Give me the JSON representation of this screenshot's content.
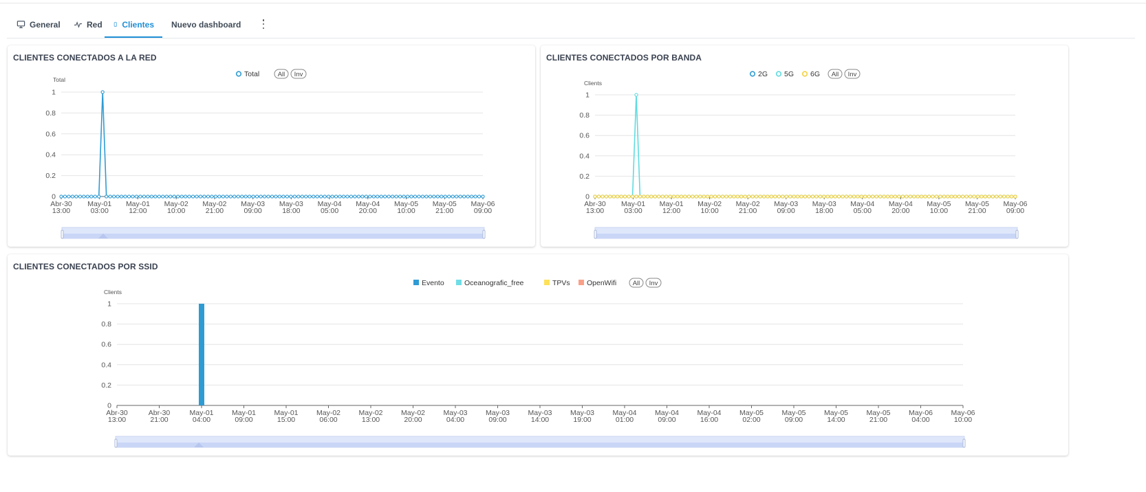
{
  "tabs": [
    {
      "label": "General",
      "icon": "monitor-icon",
      "active": false
    },
    {
      "label": "Red",
      "icon": "activity-icon",
      "active": false
    },
    {
      "label": "Clientes",
      "icon": "mobile-icon",
      "active": true
    },
    {
      "label": "Nuevo dashboard",
      "icon": "",
      "active": false
    }
  ],
  "colors": {
    "accent": "#1f8fd6",
    "total": "#2f9bd3",
    "band_2g": "#2f9bd3",
    "band_5g": "#5fdbe0",
    "band_6g": "#f4d13f",
    "evento": "#2f9bd3",
    "oceanografic": "#6fdde6",
    "tpvs": "#fde15a",
    "openwifi": "#f9a088"
  },
  "charts": {
    "red": {
      "title": "CLIENTES CONECTADOS A LA RED"
    },
    "banda": {
      "title": "CLIENTES CONECTADOS POR BANDA"
    },
    "ssid": {
      "title": "CLIENTES CONECTADOS POR SSID"
    }
  },
  "chart_data": [
    {
      "type": "line",
      "title": "CLIENTES CONECTADOS A LA RED",
      "ylabel": "Total",
      "ylim": [
        0,
        1
      ],
      "yticks": [
        "0",
        "0.2",
        "0.4",
        "0.6",
        "0.8",
        "1"
      ],
      "x_tick_labels": [
        [
          "Abr-30",
          "13:00"
        ],
        [
          "May-01",
          "03:00"
        ],
        [
          "May-01",
          "12:00"
        ],
        [
          "May-02",
          "10:00"
        ],
        [
          "May-02",
          "21:00"
        ],
        [
          "May-03",
          "09:00"
        ],
        [
          "May-03",
          "18:00"
        ],
        [
          "May-04",
          "05:00"
        ],
        [
          "May-04",
          "20:00"
        ],
        [
          "May-05",
          "10:00"
        ],
        [
          "May-05",
          "21:00"
        ],
        [
          "May-06",
          "09:00"
        ]
      ],
      "legend": [
        "Total"
      ],
      "legend_buttons": [
        "All",
        "Inv"
      ],
      "legend_placement": "top-center",
      "grid": true,
      "point_count": 113,
      "series": [
        {
          "name": "Total",
          "peak_index": 11,
          "peak_value": 1,
          "baseline_value": 0
        }
      ]
    },
    {
      "type": "line",
      "title": "CLIENTES CONECTADOS POR BANDA",
      "ylabel": "Clients",
      "ylim": [
        0,
        1
      ],
      "yticks": [
        "0",
        "0.2",
        "0.4",
        "0.6",
        "0.8",
        "1"
      ],
      "x_tick_labels": [
        [
          "Abr-30",
          "13:00"
        ],
        [
          "May-01",
          "03:00"
        ],
        [
          "May-01",
          "12:00"
        ],
        [
          "May-02",
          "10:00"
        ],
        [
          "May-02",
          "21:00"
        ],
        [
          "May-03",
          "09:00"
        ],
        [
          "May-03",
          "18:00"
        ],
        [
          "May-04",
          "05:00"
        ],
        [
          "May-04",
          "20:00"
        ],
        [
          "May-05",
          "10:00"
        ],
        [
          "May-05",
          "21:00"
        ],
        [
          "May-06",
          "09:00"
        ]
      ],
      "legend": [
        "2G",
        "5G",
        "6G"
      ],
      "legend_buttons": [
        "All",
        "Inv"
      ],
      "legend_placement": "top-center",
      "grid": true,
      "point_count": 113,
      "series": [
        {
          "name": "2G",
          "peak_index": -1,
          "peak_value": 0,
          "baseline_value": 0
        },
        {
          "name": "5G",
          "peak_index": 11,
          "peak_value": 1,
          "baseline_value": 0
        },
        {
          "name": "6G",
          "peak_index": -1,
          "peak_value": 0,
          "baseline_value": 0
        }
      ]
    },
    {
      "type": "bar",
      "title": "CLIENTES CONECTADOS POR SSID",
      "ylabel": "Clients",
      "ylim": [
        0,
        1
      ],
      "yticks": [
        "0",
        "0.2",
        "0.4",
        "0.6",
        "0.8",
        "1"
      ],
      "x_tick_labels": [
        [
          "Abr-30",
          "13:00"
        ],
        [
          "Abr-30",
          "21:00"
        ],
        [
          "May-01",
          "04:00"
        ],
        [
          "May-01",
          "09:00"
        ],
        [
          "May-01",
          "15:00"
        ],
        [
          "May-02",
          "06:00"
        ],
        [
          "May-02",
          "13:00"
        ],
        [
          "May-02",
          "20:00"
        ],
        [
          "May-03",
          "04:00"
        ],
        [
          "May-03",
          "09:00"
        ],
        [
          "May-03",
          "14:00"
        ],
        [
          "May-03",
          "19:00"
        ],
        [
          "May-04",
          "01:00"
        ],
        [
          "May-04",
          "09:00"
        ],
        [
          "May-04",
          "16:00"
        ],
        [
          "May-05",
          "02:00"
        ],
        [
          "May-05",
          "09:00"
        ],
        [
          "May-05",
          "14:00"
        ],
        [
          "May-05",
          "21:00"
        ],
        [
          "May-06",
          "04:00"
        ],
        [
          "May-06",
          "10:00"
        ]
      ],
      "legend": [
        "Evento",
        "Oceanografic_free",
        "TPVs",
        "OpenWifi"
      ],
      "legend_buttons": [
        "All",
        "Inv"
      ],
      "legend_placement": "top-center",
      "grid": true,
      "bars": [
        {
          "series": "Evento",
          "x_label": "May-01 04:00",
          "value": 1
        }
      ]
    }
  ]
}
